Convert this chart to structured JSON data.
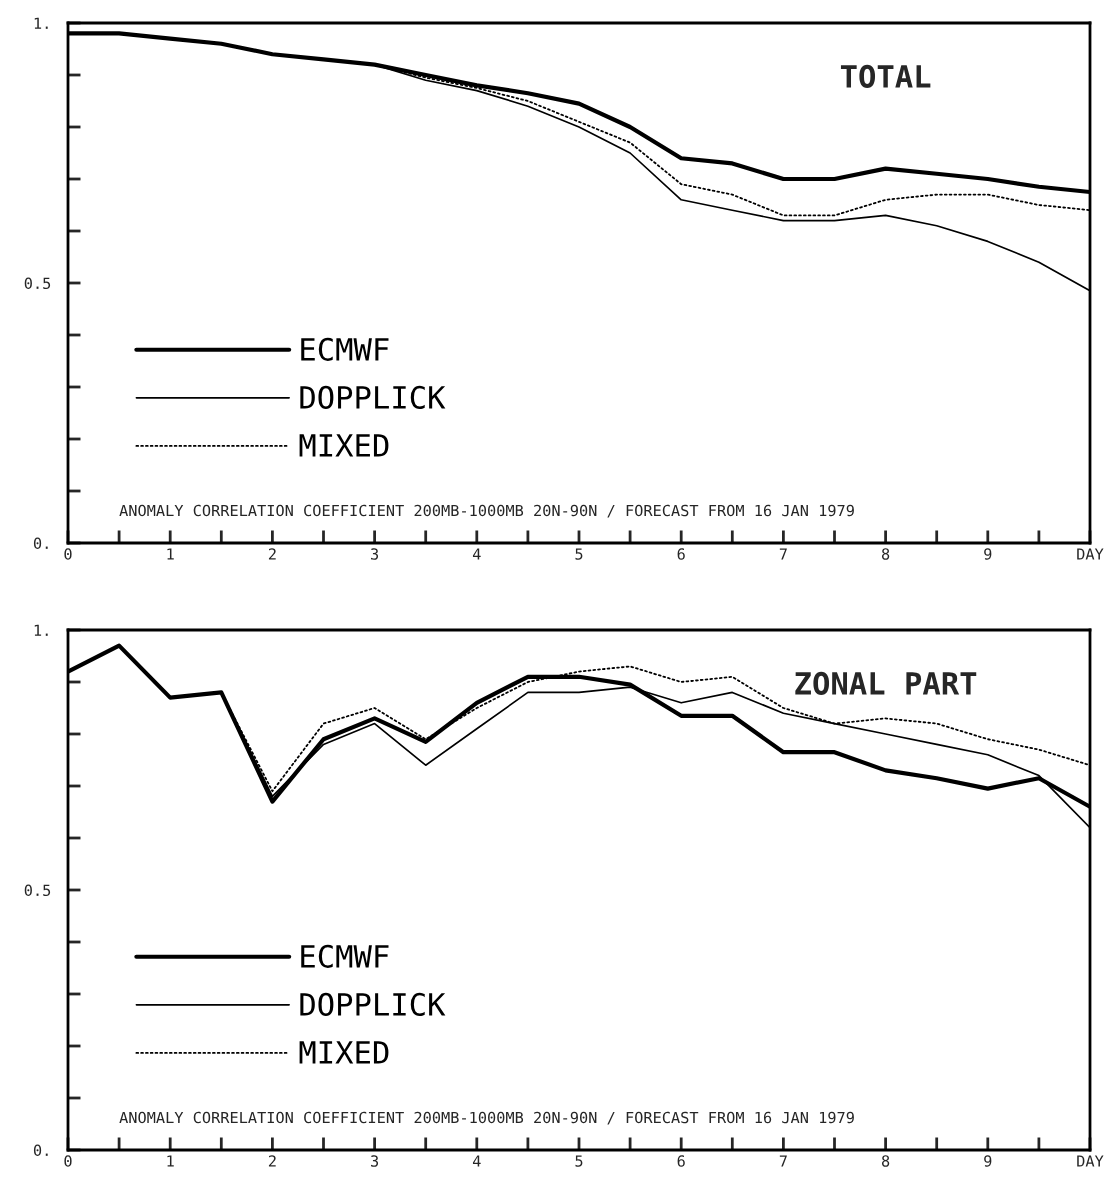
{
  "chart_data": [
    {
      "type": "line",
      "title": "TOTAL",
      "x": [
        0,
        0.5,
        1,
        1.5,
        2,
        2.5,
        3,
        3.5,
        4,
        4.5,
        5,
        5.5,
        6,
        6.5,
        7,
        7.5,
        8,
        8.5,
        9,
        9.5,
        10
      ],
      "series": [
        {
          "name": "ECMWF",
          "color": "#000000",
          "line_style": "solid",
          "values": [
            0.98,
            0.98,
            0.97,
            0.96,
            0.94,
            0.93,
            0.92,
            0.9,
            0.88,
            0.865,
            0.845,
            0.8,
            0.74,
            0.73,
            0.7,
            0.7,
            0.72,
            0.71,
            0.7,
            0.685,
            0.675
          ]
        },
        {
          "name": "DOPPLICK",
          "color": "#000000",
          "line_style": "solid",
          "values": [
            0.98,
            0.98,
            0.97,
            0.96,
            0.94,
            0.93,
            0.92,
            0.89,
            0.87,
            0.84,
            0.8,
            0.75,
            0.66,
            0.64,
            0.62,
            0.62,
            0.63,
            0.61,
            0.58,
            0.54,
            0.485
          ]
        },
        {
          "name": "MIXED",
          "color": "#000000",
          "line_style": "dotted",
          "values": [
            0.98,
            0.98,
            0.97,
            0.96,
            0.94,
            0.93,
            0.92,
            0.895,
            0.875,
            0.85,
            0.81,
            0.77,
            0.69,
            0.67,
            0.63,
            0.63,
            0.66,
            0.67,
            0.67,
            0.65,
            0.64
          ]
        }
      ],
      "xlim": [
        0,
        10
      ],
      "ylim": [
        0,
        1
      ],
      "xticks": [
        0,
        {
          "value": 0.5,
          "label": null
        },
        1,
        {
          "value": 1.5,
          "label": null
        },
        2,
        {
          "value": 2.5,
          "label": null
        },
        3,
        {
          "value": 3.5,
          "label": null
        },
        4,
        {
          "value": 4.5,
          "label": null
        },
        5,
        {
          "value": 5.5,
          "label": null
        },
        6,
        {
          "value": 6.5,
          "label": null
        },
        7,
        {
          "value": 7.5,
          "label": null
        },
        8,
        {
          "value": 8.5,
          "label": null
        },
        9,
        {
          "value": 9.5,
          "label": null
        },
        {
          "value": 10,
          "label": "DAY"
        }
      ],
      "yticks": [
        {
          "value": 0,
          "label": "0."
        },
        {
          "value": 0.1,
          "label": null
        },
        {
          "value": 0.2,
          "label": null
        },
        {
          "value": 0.3,
          "label": null
        },
        {
          "value": 0.4,
          "label": null
        },
        {
          "value": 0.5,
          "label": "0.5"
        },
        {
          "value": 0.6,
          "label": null
        },
        {
          "value": 0.7,
          "label": null
        },
        {
          "value": 0.8,
          "label": null
        },
        {
          "value": 0.9,
          "label": null
        },
        {
          "value": 1,
          "label": "1."
        }
      ],
      "legend": "left",
      "grid": false,
      "marker": "none",
      "annotations": [
        "ANOMALY CORRELATION COEFFICIENT 200MB-1000MB 20N-90N / FORECAST FROM 16 JAN 1979"
      ]
    },
    {
      "type": "line",
      "title": "ZONAL PART",
      "x": [
        0,
        0.5,
        1,
        1.5,
        2,
        2.5,
        3,
        3.5,
        4,
        4.5,
        5,
        5.5,
        6,
        6.5,
        7,
        7.5,
        8,
        8.5,
        9,
        9.5,
        10
      ],
      "series": [
        {
          "name": "ECMWF",
          "color": "#000000",
          "line_style": "solid",
          "values": [
            0.92,
            0.97,
            0.87,
            0.88,
            0.67,
            0.79,
            0.83,
            0.785,
            0.86,
            0.91,
            0.91,
            0.895,
            0.835,
            0.835,
            0.765,
            0.765,
            0.73,
            0.715,
            0.695,
            0.715,
            0.66
          ]
        },
        {
          "name": "DOPPLICK",
          "color": "#000000",
          "line_style": "solid",
          "values": [
            0.92,
            0.97,
            0.87,
            0.88,
            0.68,
            0.78,
            0.82,
            0.74,
            0.81,
            0.88,
            0.88,
            0.89,
            0.86,
            0.88,
            0.84,
            0.82,
            0.8,
            0.78,
            0.76,
            0.72,
            0.62
          ]
        },
        {
          "name": "MIXED",
          "color": "#000000",
          "line_style": "dotted",
          "values": [
            0.92,
            0.97,
            0.87,
            0.88,
            0.69,
            0.82,
            0.85,
            0.79,
            0.85,
            0.9,
            0.92,
            0.93,
            0.9,
            0.91,
            0.85,
            0.82,
            0.83,
            0.82,
            0.79,
            0.77,
            0.74
          ]
        }
      ],
      "xlim": [
        0,
        10
      ],
      "ylim": [
        0,
        1
      ],
      "xticks": [
        0,
        {
          "value": 0.5,
          "label": null
        },
        1,
        {
          "value": 1.5,
          "label": null
        },
        2,
        {
          "value": 2.5,
          "label": null
        },
        3,
        {
          "value": 3.5,
          "label": null
        },
        4,
        {
          "value": 4.5,
          "label": null
        },
        5,
        {
          "value": 5.5,
          "label": null
        },
        6,
        {
          "value": 6.5,
          "label": null
        },
        7,
        {
          "value": 7.5,
          "label": null
        },
        8,
        {
          "value": 8.5,
          "label": null
        },
        9,
        {
          "value": 9.5,
          "label": null
        },
        {
          "value": 10,
          "label": "DAY"
        }
      ],
      "yticks": [
        {
          "value": 0,
          "label": "0."
        },
        {
          "value": 0.1,
          "label": null
        },
        {
          "value": 0.2,
          "label": null
        },
        {
          "value": 0.3,
          "label": null
        },
        {
          "value": 0.4,
          "label": null
        },
        {
          "value": 0.5,
          "label": "0.5"
        },
        {
          "value": 0.6,
          "label": null
        },
        {
          "value": 0.7,
          "label": null
        },
        {
          "value": 0.8,
          "label": null
        },
        {
          "value": 0.9,
          "label": null
        },
        {
          "value": 1,
          "label": "1."
        }
      ],
      "legend": "left",
      "grid": false,
      "marker": "none",
      "annotations": [
        "ANOMALY CORRELATION COEFFICIENT 200MB-1000MB 20N-90N / FORECAST FROM 16 JAN 1979"
      ]
    }
  ]
}
